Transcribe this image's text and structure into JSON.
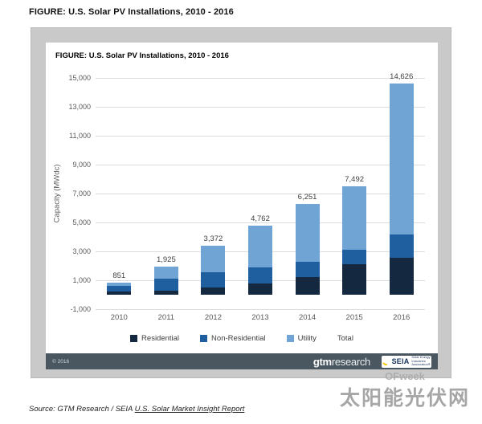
{
  "doc": {
    "header": "FIGURE: U.S. Solar PV Installations, 2010 - 2016"
  },
  "chart_data": {
    "type": "bar",
    "stacked": true,
    "title": "FIGURE: U.S. Solar PV Installations, 2010 - 2016",
    "categories": [
      "2010",
      "2011",
      "2012",
      "2013",
      "2014",
      "2015",
      "2016"
    ],
    "series": [
      {
        "name": "Residential",
        "color": "#14293f",
        "values": [
          246,
          298,
          494,
          792,
          1231,
          2099,
          2583
        ]
      },
      {
        "name": "Non-Residential",
        "color": "#1f5fa0",
        "values": [
          340,
          830,
          1075,
          1110,
          1036,
          1011,
          1586
        ]
      },
      {
        "name": "Utility",
        "color": "#6fa4d4",
        "values": [
          265,
          797,
          1803,
          2860,
          3984,
          4382,
          10457
        ]
      }
    ],
    "totals": [
      851,
      1925,
      3372,
      4762,
      6251,
      7492,
      14626
    ],
    "total_labels": [
      "851",
      "1,925",
      "3,372",
      "4,762",
      "6,251",
      "7,492",
      "14,626"
    ],
    "ylabel": "Capacity (MWdc)",
    "ylim": [
      -1000,
      15000
    ],
    "ytick_step": 2000,
    "ytick_labels": [
      "-1,000",
      "1,000",
      "3,000",
      "5,000",
      "7,000",
      "9,000",
      "11,000",
      "13,000",
      "15,000"
    ],
    "legend": [
      "Residential",
      "Non-Residential",
      "Utility",
      "Total"
    ],
    "legend_position": "bottom",
    "grid": true
  },
  "footer": {
    "copyright": "© 2016",
    "gtm_bold": "gtm",
    "gtm_light": "research",
    "seia": "SEIA",
    "seia_tagline": "Solar Energy Industries Association®"
  },
  "watermark": {
    "brand": "OFweek",
    "site": "太阳能光伏网"
  },
  "source": {
    "prefix": "Source: GTM Research / SEIA ",
    "link_text": "U.S. Solar Market Insight Report"
  }
}
